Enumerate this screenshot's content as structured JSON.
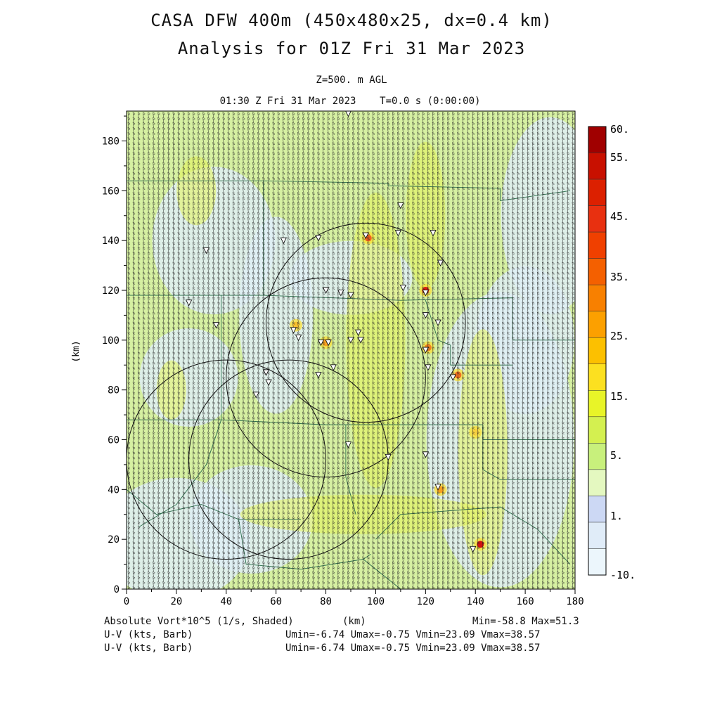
{
  "header": {
    "title_line1": "CASA DFW 400m (450x480x25, dx=0.4 km)",
    "title_line2": "Analysis for 01Z Fri 31 Mar 2023",
    "level": "Z=500. m AGL",
    "time": "01:30 Z Fri 31 Mar 2023    T=0.0 s (0:00:00)"
  },
  "axes": {
    "x_ticks": [
      "0",
      "20",
      "40",
      "60",
      "80",
      "100",
      "120",
      "140",
      "160",
      "180"
    ],
    "y_ticks": [
      "0",
      "20",
      "40",
      "60",
      "80",
      "100",
      "120",
      "140",
      "160",
      "180"
    ],
    "x_label": "(km)",
    "y_label": "(km)",
    "x_range": [
      0,
      180
    ],
    "y_range": [
      0,
      192
    ]
  },
  "colorbar": {
    "labels": [
      "60.",
      "55.",
      "45.",
      "35.",
      "25.",
      "15.",
      "5.",
      "1.",
      "-10."
    ],
    "colors": [
      "#a00000",
      "#c81000",
      "#dc2000",
      "#e83010",
      "#f04000",
      "#f46000",
      "#f88000",
      "#fca000",
      "#fcc000",
      "#fce020",
      "#e8f428",
      "#d4f050",
      "#c8f07c",
      "#e4f8c0",
      "#ccd8f4",
      "#e0ecf8",
      "#ecf6fc"
    ]
  },
  "footer": {
    "field_label": "Absolute Vort*10^5 (1/s, Shaded)",
    "field_stats": "Min=-58.8 Max=51.3",
    "barb1_label": "U-V (kts, Barb)",
    "barb1_stats": "Umin=-6.74 Umax=-0.75 Vmin=23.09 Vmax=38.57",
    "barb2_label": "U-V (kts, Barb)",
    "barb2_stats": "Umin=-6.74 Umax=-0.75 Vmin=23.09 Vmax=38.57",
    "x_unit": "(km)"
  },
  "map_data": {
    "radar_rings": [
      {
        "cx": 96,
        "cy": 107,
        "r": 40
      },
      {
        "cx": 80,
        "cy": 85,
        "r": 40
      },
      {
        "cx": 40,
        "cy": 52,
        "r": 40
      },
      {
        "cx": 65,
        "cy": 52,
        "r": 40
      }
    ],
    "hotspots": [
      {
        "x": 97,
        "y": 141,
        "color": "#f06020"
      },
      {
        "x": 120,
        "y": 120,
        "color": "#e02010"
      },
      {
        "x": 133,
        "y": 86,
        "color": "#f07020"
      },
      {
        "x": 142,
        "y": 18,
        "color": "#d01010"
      },
      {
        "x": 126,
        "y": 40,
        "color": "#f8a020"
      },
      {
        "x": 80,
        "y": 99,
        "color": "#f8a020"
      },
      {
        "x": 121,
        "y": 97,
        "color": "#f08020"
      },
      {
        "x": 140,
        "y": 63,
        "color": "#f8d040"
      },
      {
        "x": 68,
        "y": 106,
        "color": "#f8c030"
      }
    ],
    "station_markers": [
      [
        89,
        191
      ],
      [
        110,
        154
      ],
      [
        109,
        143
      ],
      [
        96,
        142
      ],
      [
        123,
        143
      ],
      [
        77,
        141
      ],
      [
        63,
        140
      ],
      [
        126,
        131
      ],
      [
        32,
        136
      ],
      [
        111,
        121
      ],
      [
        86,
        119
      ],
      [
        90,
        118
      ],
      [
        80,
        120
      ],
      [
        120,
        119
      ],
      [
        25,
        115
      ],
      [
        120,
        110
      ],
      [
        125,
        107
      ],
      [
        36,
        106
      ],
      [
        67,
        104
      ],
      [
        69,
        101
      ],
      [
        93,
        103
      ],
      [
        90,
        100
      ],
      [
        94,
        100
      ],
      [
        81,
        99
      ],
      [
        78,
        99
      ],
      [
        120,
        96
      ],
      [
        121,
        89
      ],
      [
        83,
        89
      ],
      [
        77,
        86
      ],
      [
        131,
        85
      ],
      [
        56,
        87
      ],
      [
        57,
        83
      ],
      [
        52,
        78
      ],
      [
        89,
        58
      ],
      [
        105,
        53
      ],
      [
        120,
        54
      ],
      [
        125,
        41
      ],
      [
        139,
        16
      ]
    ]
  }
}
